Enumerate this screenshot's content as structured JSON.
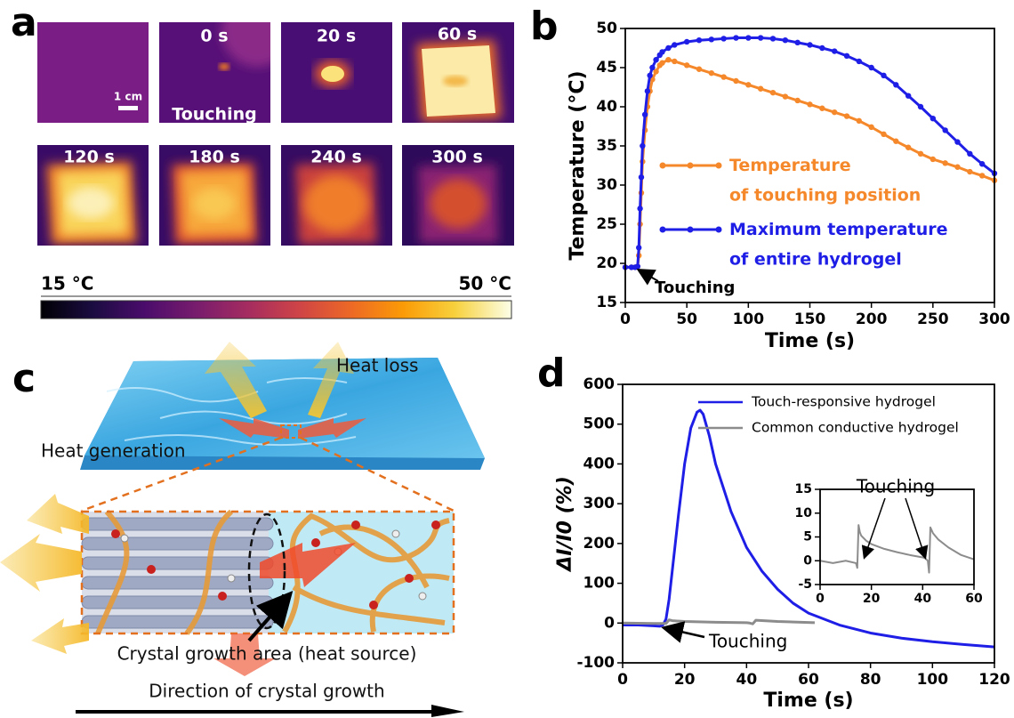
{
  "panel_labels": [
    "a",
    "b",
    "c",
    "d"
  ],
  "thermal_images": {
    "times": [
      "0 s",
      "20 s",
      "60 s",
      "120 s",
      "180 s",
      "240 s",
      "300 s"
    ],
    "touching": "Touching",
    "scale_bar": "1 cm",
    "colorbar_min": "15 °C",
    "colorbar_max": "50 °C"
  },
  "diagram": {
    "heat_loss": "Heat loss",
    "heat_generation": "Heat generation",
    "crystal_growth_area": "Crystal growth area (heat source)",
    "direction": "Direction of crystal growth"
  },
  "chart_data": [
    {
      "type": "line",
      "markers": true,
      "x_label": "Time (s)",
      "y_label": "Temperature (°C)",
      "xlim": [
        0,
        300
      ],
      "ylim": [
        15,
        50
      ],
      "xticks": [
        0,
        50,
        100,
        150,
        200,
        250,
        300
      ],
      "yticks": [
        15,
        20,
        25,
        30,
        35,
        40,
        45,
        50
      ],
      "x": [
        0,
        5,
        8,
        10,
        11,
        12,
        13,
        14,
        16,
        18,
        20,
        22,
        25,
        28,
        30,
        35,
        40,
        50,
        60,
        70,
        80,
        90,
        100,
        110,
        120,
        130,
        140,
        150,
        160,
        170,
        180,
        190,
        200,
        210,
        220,
        230,
        240,
        250,
        260,
        270,
        280,
        290,
        300
      ],
      "series": [
        {
          "name": "Temperature\nof touching position",
          "color": "#f5882a",
          "values": [
            19.5,
            19.5,
            19.5,
            19.6,
            21,
            25,
            29,
            33,
            37,
            40,
            42,
            43.5,
            44.5,
            45.3,
            45.6,
            46,
            45.8,
            45.3,
            44.8,
            44.3,
            43.8,
            43.3,
            42.8,
            42.3,
            41.8,
            41.3,
            40.8,
            40.3,
            39.8,
            39.3,
            38.8,
            38.2,
            37.4,
            36.5,
            35.6,
            34.8,
            34,
            33.3,
            32.8,
            32.3,
            31.7,
            31.2,
            30.6
          ]
        },
        {
          "name": "Maximum temperature\nof entire hydrogel",
          "color": "#1e1ee6",
          "values": [
            19.5,
            19.5,
            19.5,
            19.6,
            22,
            27,
            31,
            35,
            39,
            42,
            44,
            45,
            46,
            46.6,
            47,
            47.5,
            47.9,
            48.3,
            48.5,
            48.6,
            48.7,
            48.8,
            48.8,
            48.8,
            48.7,
            48.5,
            48.2,
            47.9,
            47.5,
            47.1,
            46.5,
            45.8,
            45,
            44,
            42.8,
            41.4,
            40,
            38.5,
            37,
            35.5,
            34,
            32.7,
            31.5
          ]
        }
      ],
      "annotations": [
        "Touching"
      ]
    },
    {
      "type": "line",
      "markers": false,
      "x_label": "Time (s)",
      "y_label": "ΔI/I0 (%)",
      "xlim": [
        0,
        120
      ],
      "ylim": [
        -100,
        600
      ],
      "xticks": [
        0,
        20,
        40,
        60,
        80,
        100,
        120
      ],
      "yticks": [
        -100,
        0,
        100,
        200,
        300,
        400,
        500,
        600
      ],
      "series": [
        {
          "name": "Touch-responsive hydrogel",
          "color": "#1e1ee6",
          "x": [
            0,
            5,
            10,
            12,
            13,
            14,
            15,
            16,
            18,
            20,
            22,
            24,
            25,
            26,
            28,
            30,
            35,
            40,
            45,
            50,
            55,
            60,
            70,
            80,
            90,
            100,
            110,
            120
          ],
          "values": [
            -5,
            -5,
            -7,
            -8,
            -5,
            10,
            60,
            130,
            270,
            400,
            490,
            530,
            535,
            525,
            470,
            400,
            280,
            190,
            130,
            85,
            50,
            25,
            -5,
            -25,
            -38,
            -47,
            -54,
            -60
          ]
        },
        {
          "name": "Common conductive hydrogel",
          "color": "#8c8c8c",
          "x": [
            0,
            10,
            14,
            15,
            16,
            20,
            30,
            40,
            41,
            42,
            43,
            50,
            62
          ],
          "values": [
            0,
            -1,
            -1,
            8,
            6,
            4,
            2,
            1,
            0,
            -2,
            7,
            4,
            1
          ]
        }
      ],
      "annotations": [
        "Touching"
      ]
    },
    {
      "type": "line",
      "markers": false,
      "xlim": [
        0,
        60
      ],
      "ylim": [
        -5,
        15
      ],
      "xticks": [
        0,
        20,
        40,
        60
      ],
      "yticks": [
        -5,
        0,
        5,
        10,
        15
      ],
      "series": [
        {
          "color": "#8c8c8c",
          "x": [
            0,
            5,
            10,
            14,
            14.5,
            15,
            15.5,
            16,
            18,
            20,
            25,
            30,
            35,
            40,
            41,
            42,
            42.5,
            43,
            44,
            46,
            50,
            55,
            60
          ],
          "values": [
            0,
            -0.5,
            0,
            -0.5,
            -1.5,
            7.5,
            6,
            5.3,
            4.2,
            3.5,
            2.5,
            1.8,
            1.2,
            0.7,
            0.5,
            0,
            -2.5,
            7,
            5.8,
            4.5,
            2.8,
            1.2,
            0.3
          ]
        }
      ],
      "annotations": [
        "Touching"
      ]
    }
  ]
}
